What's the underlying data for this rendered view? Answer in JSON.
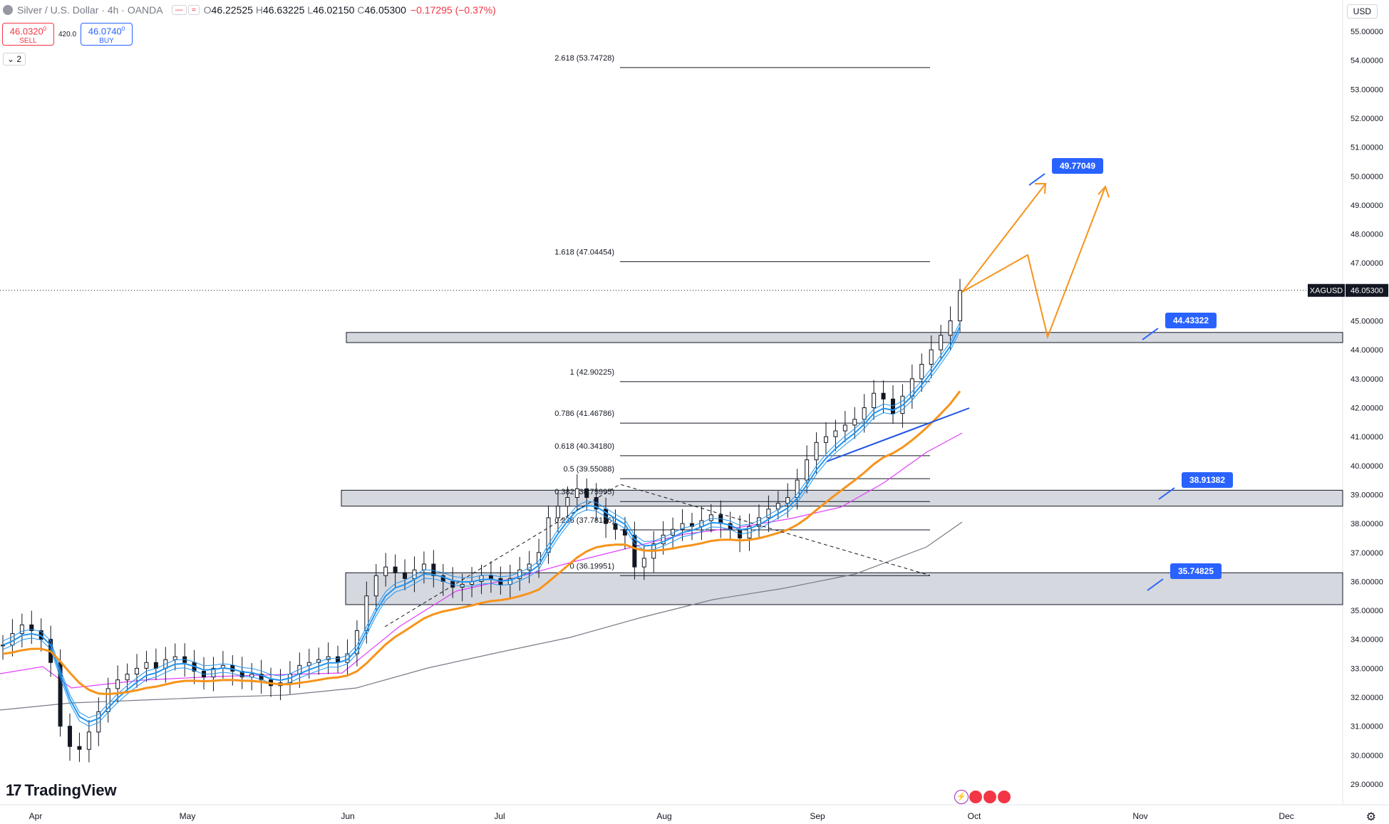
{
  "header": {
    "symbol": "Silver / U.S. Dollar · 4h · OANDA",
    "open_label": "O",
    "open": "46.22525",
    "high_label": "H",
    "high": "46.63225",
    "low_label": "L",
    "low": "46.02150",
    "close_label": "C",
    "close": "46.05300",
    "change": "−0.17295 (−0.37%)"
  },
  "trade": {
    "sell_price": "46.0320",
    "sell_price_sup": "0",
    "sell_label": "SELL",
    "spread": "420.0",
    "buy_price": "46.0740",
    "buy_price_sup": "0",
    "buy_label": "BUY"
  },
  "indicator_toggle": "2",
  "currency": "USD",
  "brand": "TradingView",
  "colors": {
    "up": "#131722",
    "down": "#131722",
    "ema_fast": "#2196f3",
    "ema_mid": "#f7931a",
    "ema_slow": "#e040fb",
    "sma_long": "#787b86",
    "zone": "#d1d4dc",
    "label_blue": "#2962ff",
    "projection": "#f7931a",
    "trendline": "#1e53e5"
  },
  "chart_data": {
    "type": "candlestick",
    "price_axis": {
      "ticks": [
        "55.00000",
        "54.00000",
        "53.00000",
        "52.00000",
        "51.00000",
        "50.00000",
        "49.00000",
        "48.00000",
        "47.00000",
        "46.00000",
        "45.00000",
        "44.00000",
        "43.00000",
        "42.00000",
        "41.00000",
        "40.00000",
        "39.00000",
        "38.00000",
        "37.00000",
        "36.00000",
        "35.00000",
        "34.00000",
        "33.00000",
        "32.00000",
        "31.00000",
        "30.00000",
        "29.00000"
      ],
      "min": 28.6,
      "max": 55.3
    },
    "time_axis": {
      "labels": [
        "Apr",
        "May",
        "Jun",
        "Jul",
        "Aug",
        "Sep",
        "Oct",
        "Nov",
        "Dec"
      ]
    },
    "last_price": {
      "symbol": "XAGUSD",
      "value": "46.05300"
    },
    "fib_levels": [
      {
        "label": "2.618 (53.74728)",
        "value": 53.74728
      },
      {
        "label": "1.618 (47.04454)",
        "value": 47.04454
      },
      {
        "label": "1 (42.90225)",
        "value": 42.90225
      },
      {
        "label": "0.786 (41.46786)",
        "value": 41.46786
      },
      {
        "label": "0.618 (40.34180)",
        "value": 40.3418
      },
      {
        "label": "0.5 (39.55088)",
        "value": 39.55088
      },
      {
        "label": "0.382 (38.75995)",
        "value": 38.75995
      },
      {
        "label": "0.236 (37.78136)",
        "value": 37.78136
      },
      {
        "label": "0 (36.19951)",
        "value": 36.19951
      }
    ],
    "zones": [
      {
        "top": 44.6,
        "bottom": 44.25
      },
      {
        "top": 39.15,
        "bottom": 38.6
      },
      {
        "top": 36.3,
        "bottom": 35.2
      }
    ],
    "price_labels": [
      {
        "text": "49.77049",
        "value": 49.77049
      },
      {
        "text": "44.43322",
        "value": 44.43322
      },
      {
        "text": "38.91382",
        "value": 38.91382
      },
      {
        "text": "35.74825",
        "value": 35.74825
      }
    ],
    "candles_close_path": [
      33.8,
      34.2,
      34.5,
      34.3,
      34.0,
      33.2,
      31.0,
      30.3,
      30.2,
      30.8,
      31.5,
      32.3,
      32.6,
      32.8,
      33.0,
      33.2,
      33.0,
      33.3,
      33.4,
      33.2,
      32.9,
      32.7,
      33.0,
      33.1,
      32.9,
      32.7,
      32.8,
      32.6,
      32.4,
      32.5,
      32.8,
      33.1,
      33.2,
      33.3,
      33.4,
      33.2,
      33.5,
      34.3,
      35.5,
      36.2,
      36.5,
      36.3,
      36.1,
      36.4,
      36.6,
      36.2,
      36.0,
      35.8,
      35.9,
      36.0,
      36.2,
      36.1,
      35.9,
      36.1,
      36.4,
      36.6,
      37.0,
      38.2,
      38.6,
      38.9,
      39.2,
      38.9,
      38.5,
      38.0,
      37.8,
      37.6,
      36.5,
      36.8,
      37.3,
      37.6,
      37.8,
      38.0,
      37.9,
      38.1,
      38.3,
      38.0,
      37.8,
      37.5,
      37.9,
      38.2,
      38.5,
      38.7,
      38.9,
      39.5,
      40.2,
      40.8,
      41.0,
      41.2,
      41.4,
      41.6,
      42.0,
      42.5,
      42.3,
      41.8,
      42.4,
      43.0,
      43.5,
      44.0,
      44.5,
      45.0,
      46.05
    ]
  }
}
